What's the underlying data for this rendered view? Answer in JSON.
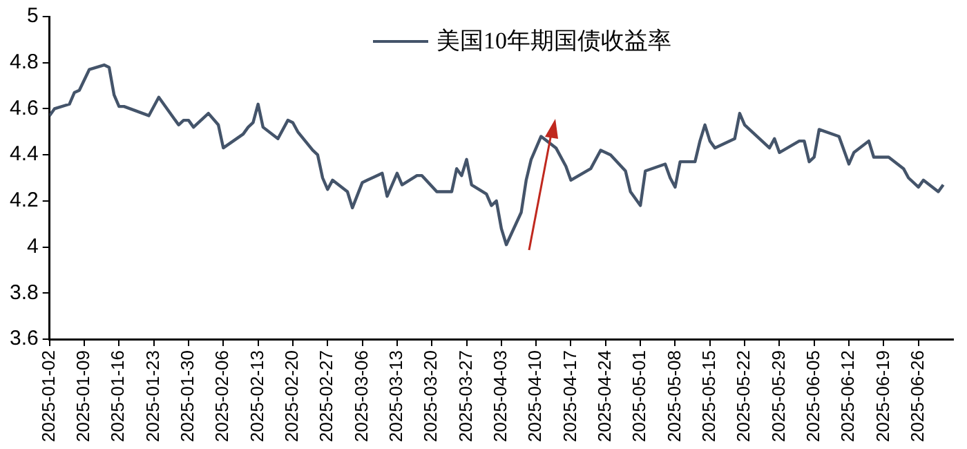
{
  "chart_data": {
    "type": "line",
    "x": [
      "2025-01-02",
      "2025-01-03",
      "2025-01-06",
      "2025-01-07",
      "2025-01-08",
      "2025-01-10",
      "2025-01-13",
      "2025-01-14",
      "2025-01-15",
      "2025-01-16",
      "2025-01-17",
      "2025-01-22",
      "2025-01-24",
      "2025-01-28",
      "2025-01-29",
      "2025-01-30",
      "2025-01-31",
      "2025-02-03",
      "2025-02-05",
      "2025-02-06",
      "2025-02-10",
      "2025-02-11",
      "2025-02-12",
      "2025-02-13",
      "2025-02-14",
      "2025-02-17",
      "2025-02-19",
      "2025-02-20",
      "2025-02-21",
      "2025-02-24",
      "2025-02-25",
      "2025-02-26",
      "2025-02-27",
      "2025-02-28",
      "2025-03-03",
      "2025-03-04",
      "2025-03-06",
      "2025-03-07",
      "2025-03-10",
      "2025-03-11",
      "2025-03-13",
      "2025-03-14",
      "2025-03-17",
      "2025-03-18",
      "2025-03-21",
      "2025-03-24",
      "2025-03-25",
      "2025-03-26",
      "2025-03-27",
      "2025-03-28",
      "2025-03-31",
      "2025-04-01",
      "2025-04-02",
      "2025-04-03",
      "2025-04-04",
      "2025-04-07",
      "2025-04-08",
      "2025-04-09",
      "2025-04-11",
      "2025-04-14",
      "2025-04-16",
      "2025-04-17",
      "2025-04-21",
      "2025-04-23",
      "2025-04-25",
      "2025-04-28",
      "2025-04-29",
      "2025-05-01",
      "2025-05-02",
      "2025-05-06",
      "2025-05-07",
      "2025-05-08",
      "2025-05-09",
      "2025-05-12",
      "2025-05-13",
      "2025-05-14",
      "2025-05-15",
      "2025-05-16",
      "2025-05-20",
      "2025-05-21",
      "2025-05-22",
      "2025-05-27",
      "2025-05-28",
      "2025-05-29",
      "2025-06-02",
      "2025-06-03",
      "2025-06-04",
      "2025-06-05",
      "2025-06-06",
      "2025-06-10",
      "2025-06-12",
      "2025-06-13",
      "2025-06-16",
      "2025-06-17",
      "2025-06-20",
      "2025-06-23",
      "2025-06-24",
      "2025-06-26",
      "2025-06-27",
      "2025-06-30",
      "2025-07-01"
    ],
    "series": [
      {
        "name": "美国10年期国债收益率",
        "color": "#44546a",
        "values": [
          4.57,
          4.6,
          4.62,
          4.67,
          4.68,
          4.77,
          4.79,
          4.78,
          4.66,
          4.61,
          4.61,
          4.57,
          4.65,
          4.53,
          4.55,
          4.55,
          4.52,
          4.58,
          4.53,
          4.43,
          4.49,
          4.52,
          4.54,
          4.62,
          4.52,
          4.47,
          4.55,
          4.54,
          4.5,
          4.42,
          4.4,
          4.3,
          4.25,
          4.29,
          4.24,
          4.17,
          4.28,
          4.29,
          4.32,
          4.22,
          4.32,
          4.27,
          4.31,
          4.31,
          4.24,
          4.24,
          4.34,
          4.31,
          4.38,
          4.27,
          4.23,
          4.18,
          4.2,
          4.08,
          4.01,
          4.15,
          4.29,
          4.38,
          4.48,
          4.43,
          4.35,
          4.29,
          4.34,
          4.42,
          4.4,
          4.33,
          4.24,
          4.18,
          4.33,
          4.36,
          4.3,
          4.26,
          4.37,
          4.37,
          4.46,
          4.53,
          4.46,
          4.43,
          4.47,
          4.58,
          4.53,
          4.43,
          4.47,
          4.41,
          4.46,
          4.46,
          4.37,
          4.39,
          4.51,
          4.48,
          4.36,
          4.41,
          4.46,
          4.39,
          4.39,
          4.34,
          4.3,
          4.26,
          4.29,
          4.24,
          4.27
        ]
      }
    ],
    "xlim": [
      "2025-01-02",
      "2025-07-03"
    ],
    "xticks": [
      "2025-01-02",
      "2025-01-09",
      "2025-01-16",
      "2025-01-23",
      "2025-01-30",
      "2025-02-06",
      "2025-02-13",
      "2025-02-20",
      "2025-02-27",
      "2025-03-06",
      "2025-03-13",
      "2025-03-20",
      "2025-03-27",
      "2025-04-03",
      "2025-04-10",
      "2025-04-17",
      "2025-04-24",
      "2025-05-01",
      "2025-05-08",
      "2025-05-15",
      "2025-05-22",
      "2025-05-29",
      "2025-06-05",
      "2025-06-12",
      "2025-06-19",
      "2025-06-26"
    ],
    "ylim": [
      3.6,
      5
    ],
    "yticks": [
      3.6,
      3.8,
      4,
      4.2,
      4.4,
      4.6,
      4.8,
      5
    ],
    "grid": false,
    "legend": "top",
    "marker": "none",
    "line_style": "solid"
  }
}
